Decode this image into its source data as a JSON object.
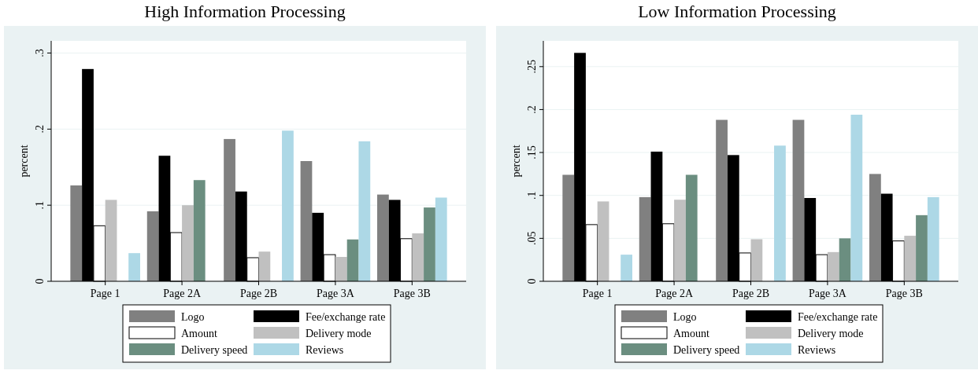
{
  "chart_data": [
    {
      "type": "bar",
      "title": "High Information Processing",
      "ylabel": "percent",
      "categories": [
        "Page 1",
        "Page 2A",
        "Page 2B",
        "Page 3A",
        "Page 3B"
      ],
      "series": [
        {
          "name": "Logo",
          "color": "#808080",
          "values": [
            0.126,
            0.092,
            0.187,
            0.158,
            0.114
          ]
        },
        {
          "name": "Fee/exchange rate",
          "color": "#000000",
          "values": [
            0.279,
            0.165,
            0.118,
            0.09,
            0.107
          ]
        },
        {
          "name": "Amount",
          "color": "#ffffff",
          "values": [
            0.073,
            0.064,
            0.031,
            0.035,
            0.056
          ]
        },
        {
          "name": "Delivery mode",
          "color": "#c0c0c0",
          "values": [
            0.107,
            0.1,
            0.039,
            0.032,
            0.063
          ]
        },
        {
          "name": "Delivery speed",
          "color": "#6b8e80",
          "values": [
            null,
            0.133,
            null,
            0.055,
            0.097
          ]
        },
        {
          "name": "Reviews",
          "color": "#add8e6",
          "values": [
            0.037,
            null,
            0.198,
            0.184,
            0.11
          ]
        }
      ],
      "ylim": [
        0,
        0.316
      ],
      "yticks": [
        {
          "value": 0,
          "label": "0"
        },
        {
          "value": 0.1,
          "label": ".1"
        },
        {
          "value": 0.2,
          "label": ".2"
        },
        {
          "value": 0.3,
          "label": ".3"
        }
      ],
      "grid": "y",
      "legend": "bottom"
    },
    {
      "type": "bar",
      "title": "Low Information Processing",
      "ylabel": "percent",
      "categories": [
        "Page 1",
        "Page 2A",
        "Page 2B",
        "Page 3A",
        "Page 3B"
      ],
      "series": [
        {
          "name": "Logo",
          "color": "#808080",
          "values": [
            0.124,
            0.098,
            0.188,
            0.188,
            0.125
          ]
        },
        {
          "name": "Fee/exchange rate",
          "color": "#000000",
          "values": [
            0.266,
            0.151,
            0.147,
            0.097,
            0.102
          ]
        },
        {
          "name": "Amount",
          "color": "#ffffff",
          "values": [
            0.066,
            0.067,
            0.033,
            0.031,
            0.047
          ]
        },
        {
          "name": "Delivery mode",
          "color": "#c0c0c0",
          "values": [
            0.093,
            0.095,
            0.049,
            0.034,
            0.053
          ]
        },
        {
          "name": "Delivery speed",
          "color": "#6b8e80",
          "values": [
            null,
            0.124,
            null,
            0.05,
            0.077
          ]
        },
        {
          "name": "Reviews",
          "color": "#add8e6",
          "values": [
            0.031,
            null,
            0.158,
            0.194,
            0.098
          ]
        }
      ],
      "ylim": [
        0,
        0.28
      ],
      "yticks": [
        {
          "value": 0,
          "label": "0"
        },
        {
          "value": 0.05,
          "label": ".05"
        },
        {
          "value": 0.1,
          "label": ".1"
        },
        {
          "value": 0.15,
          "label": ".15"
        },
        {
          "value": 0.2,
          "label": ".2"
        },
        {
          "value": 0.25,
          "label": ".25"
        }
      ],
      "grid": "y",
      "legend": "bottom"
    }
  ]
}
